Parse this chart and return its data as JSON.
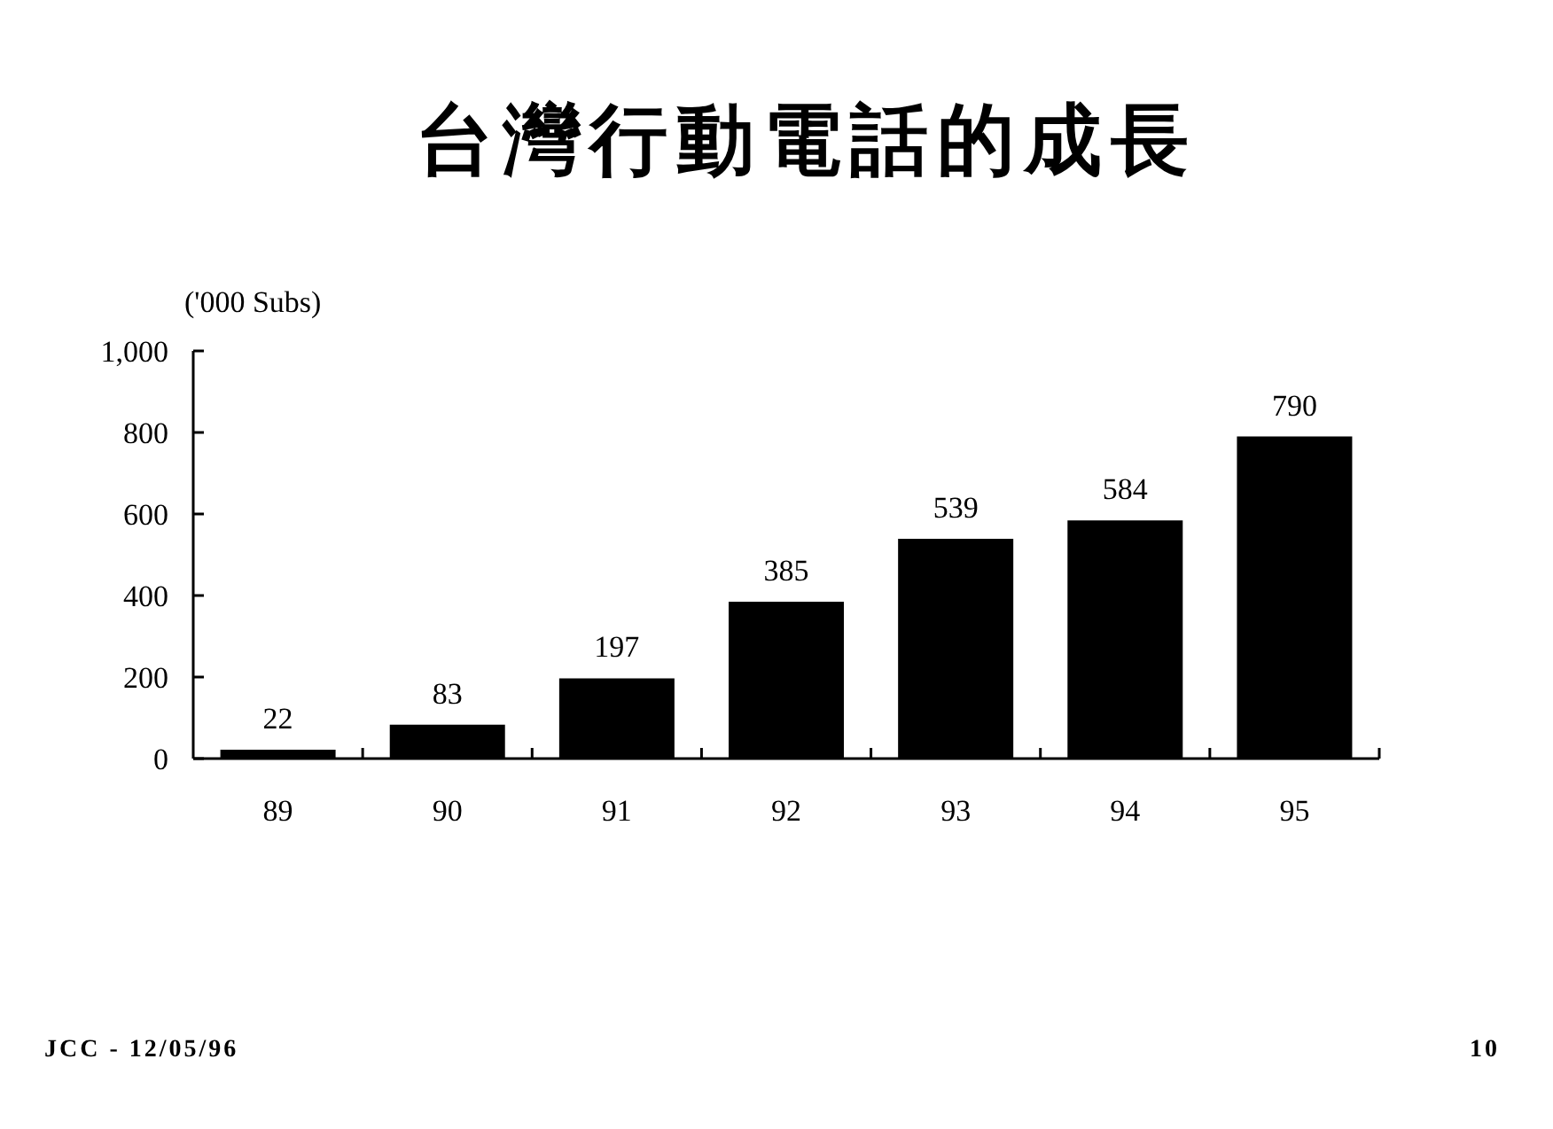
{
  "chart_data": {
    "type": "bar",
    "title": "台灣行動電話的成長",
    "ylabel": "('000 Subs)",
    "categories": [
      "89",
      "90",
      "91",
      "92",
      "93",
      "94",
      "95"
    ],
    "values": [
      22,
      83,
      197,
      385,
      539,
      584,
      790
    ],
    "color": "#000000",
    "ylim": [
      0,
      1000
    ],
    "yticks": [
      0,
      200,
      400,
      600,
      800,
      {
        "value": 1000,
        "label": "1,000"
      }
    ],
    "data_labels": true,
    "annotations": [
      "JCC - 12/05/96",
      "10"
    ]
  }
}
